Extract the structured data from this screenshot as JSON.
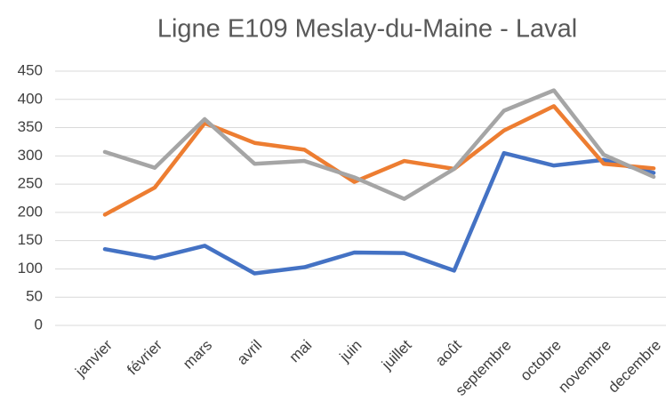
{
  "chart_data": {
    "type": "line",
    "title": "Ligne E109 Meslay-du-Maine - Laval",
    "categories": [
      "janvier",
      "février",
      "mars",
      "avril",
      "mai",
      "juin",
      "juillet",
      "août",
      "septembre",
      "octobre",
      "novembre",
      "decembre"
    ],
    "series": [
      {
        "color": "#4472c4",
        "values": [
          135,
          119,
          141,
          92,
          103,
          129,
          128,
          97,
          305,
          283,
          293,
          270
        ]
      },
      {
        "color": "#ed7d31",
        "values": [
          196,
          244,
          358,
          323,
          311,
          254,
          291,
          277,
          345,
          388,
          286,
          278
        ]
      },
      {
        "color": "#a5a5a5",
        "values": [
          307,
          279,
          365,
          286,
          291,
          262,
          224,
          277,
          380,
          416,
          302,
          263
        ]
      }
    ],
    "ylim": [
      0,
      450
    ],
    "yticks": [
      0,
      50,
      100,
      150,
      200,
      250,
      300,
      350,
      400,
      450
    ],
    "grid": true
  }
}
